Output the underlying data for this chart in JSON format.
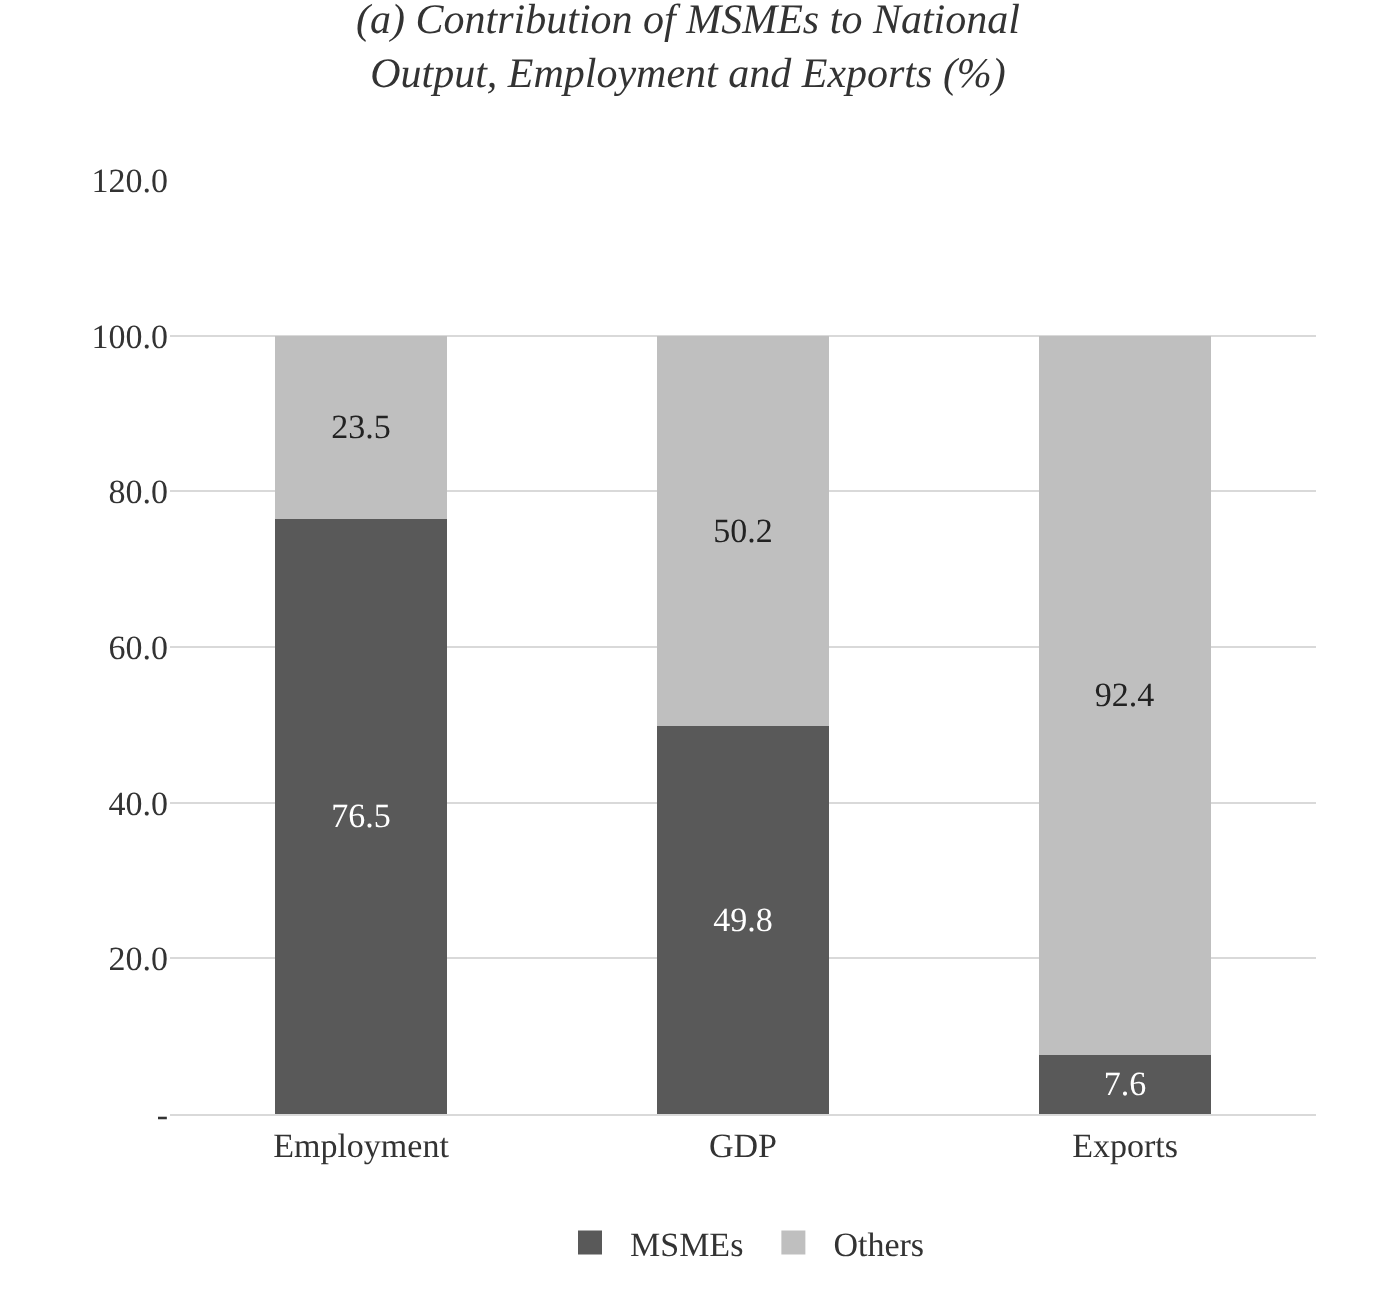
{
  "chart_data": {
    "type": "bar",
    "title": "(a) Contribution of MSMEs to National Output, Employment and Exports (%)",
    "categories": [
      "Employment",
      "GDP",
      "Exports"
    ],
    "series": [
      {
        "name": "MSMEs",
        "color": "#595959",
        "values": [
          76.5,
          49.8,
          7.6
        ]
      },
      {
        "name": "Others",
        "color": "#bfbfbf",
        "values": [
          23.5,
          50.2,
          92.4
        ]
      }
    ],
    "stacked": true,
    "data_labels": true,
    "ylim": [
      0,
      120
    ],
    "yticks": [
      {
        "value": 0,
        "label": "-"
      },
      {
        "value": 20,
        "label": "20.0"
      },
      {
        "value": 40,
        "label": "40.0"
      },
      {
        "value": 60,
        "label": "60.0"
      },
      {
        "value": 80,
        "label": "80.0"
      },
      {
        "value": 100,
        "label": "100.0"
      },
      {
        "value": 120,
        "label": "120.0"
      }
    ],
    "grid": "y",
    "legend": "bottom"
  }
}
